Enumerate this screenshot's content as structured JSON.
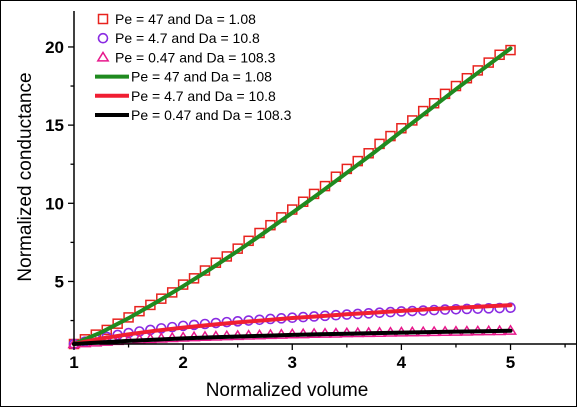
{
  "chart_data": {
    "type": "scatter",
    "xlabel": "Normalized volume",
    "ylabel": "Normalized conductance",
    "xlim": [
      1,
      5.6
    ],
    "ylim": [
      1,
      22.3
    ],
    "xticks": [
      1,
      2,
      3,
      4,
      5
    ],
    "yticks": [
      5,
      10,
      15,
      20
    ],
    "grid": false,
    "legend_position": "top-left",
    "series": [
      {
        "name": "Pe = 47 and Da = 1.08",
        "kind": "markers",
        "marker": "square",
        "color": "#e8231e",
        "x": [
          1.0,
          1.1,
          1.2,
          1.3,
          1.4,
          1.5,
          1.6,
          1.7,
          1.8,
          1.9,
          2.0,
          2.1,
          2.2,
          2.3,
          2.4,
          2.5,
          2.6,
          2.7,
          2.8,
          2.9,
          3.0,
          3.1,
          3.2,
          3.3,
          3.4,
          3.5,
          3.6,
          3.7,
          3.8,
          3.9,
          4.0,
          4.1,
          4.2,
          4.3,
          4.4,
          4.5,
          4.6,
          4.7,
          4.8,
          4.9,
          5.0
        ],
        "y": [
          1.0,
          1.3,
          1.6,
          1.9,
          2.3,
          2.7,
          3.1,
          3.5,
          3.9,
          4.3,
          4.8,
          5.2,
          5.7,
          6.2,
          6.6,
          7.1,
          7.6,
          8.1,
          8.6,
          9.1,
          9.6,
          10.1,
          10.6,
          11.1,
          11.7,
          12.2,
          12.7,
          13.2,
          13.8,
          14.3,
          14.8,
          15.3,
          15.9,
          16.4,
          17.0,
          17.5,
          18.0,
          18.5,
          19.0,
          19.5,
          19.8
        ]
      },
      {
        "name": "Pe = 4.7 and Da = 10.8",
        "kind": "markers",
        "marker": "circle",
        "color": "#8a2be2",
        "x": [
          1.0,
          1.1,
          1.2,
          1.3,
          1.4,
          1.5,
          1.6,
          1.7,
          1.8,
          1.9,
          2.0,
          2.1,
          2.2,
          2.3,
          2.4,
          2.5,
          2.6,
          2.7,
          2.8,
          2.9,
          3.0,
          3.1,
          3.2,
          3.3,
          3.4,
          3.5,
          3.6,
          3.7,
          3.8,
          3.9,
          4.0,
          4.1,
          4.2,
          4.3,
          4.4,
          4.5,
          4.6,
          4.7,
          4.8,
          4.9,
          5.0
        ],
        "y": [
          1.0,
          1.15,
          1.3,
          1.45,
          1.58,
          1.7,
          1.8,
          1.9,
          2.0,
          2.08,
          2.16,
          2.22,
          2.28,
          2.34,
          2.4,
          2.45,
          2.5,
          2.55,
          2.6,
          2.64,
          2.68,
          2.72,
          2.76,
          2.8,
          2.84,
          2.88,
          2.92,
          2.96,
          3.0,
          3.04,
          3.08,
          3.11,
          3.14,
          3.17,
          3.2,
          3.22,
          3.24,
          3.26,
          3.28,
          3.3,
          3.32
        ]
      },
      {
        "name": "Pe = 0.47 and Da = 108.3",
        "kind": "markers",
        "marker": "triangle",
        "color": "#e8188c",
        "x": [
          1.0,
          1.1,
          1.2,
          1.3,
          1.4,
          1.5,
          1.6,
          1.7,
          1.8,
          1.9,
          2.0,
          2.1,
          2.2,
          2.3,
          2.4,
          2.5,
          2.6,
          2.7,
          2.8,
          2.9,
          3.0,
          3.1,
          3.2,
          3.3,
          3.4,
          3.5,
          3.6,
          3.7,
          3.8,
          3.9,
          4.0,
          4.1,
          4.2,
          4.3,
          4.4,
          4.5,
          4.6,
          4.7,
          4.8,
          4.9,
          5.0
        ],
        "y": [
          1.0,
          1.05,
          1.1,
          1.15,
          1.2,
          1.24,
          1.28,
          1.32,
          1.35,
          1.38,
          1.41,
          1.44,
          1.46,
          1.48,
          1.5,
          1.52,
          1.54,
          1.56,
          1.58,
          1.6,
          1.62,
          1.63,
          1.65,
          1.66,
          1.67,
          1.69,
          1.7,
          1.71,
          1.72,
          1.73,
          1.74,
          1.75,
          1.76,
          1.77,
          1.78,
          1.79,
          1.8,
          1.81,
          1.82,
          1.83,
          1.85
        ]
      },
      {
        "name": "Pe = 47 and Da = 1.08",
        "kind": "line",
        "color": "#1f8a1f",
        "x": [
          1.0,
          1.25,
          1.5,
          1.75,
          2.0,
          2.25,
          2.5,
          2.75,
          3.0,
          3.25,
          3.5,
          3.75,
          4.0,
          4.25,
          4.5,
          4.75,
          5.0
        ],
        "y": [
          1.0,
          1.75,
          2.65,
          3.65,
          4.7,
          5.8,
          6.95,
          8.15,
          9.4,
          10.65,
          11.95,
          13.25,
          14.6,
          15.95,
          17.3,
          18.6,
          19.9
        ]
      },
      {
        "name": "Pe = 4.7 and Da = 10.8",
        "kind": "line",
        "color": "#f01e32",
        "x": [
          1.0,
          1.25,
          1.5,
          1.75,
          2.0,
          2.25,
          2.5,
          2.75,
          3.0,
          3.25,
          3.5,
          3.75,
          4.0,
          4.25,
          4.5,
          4.75,
          5.0
        ],
        "y": [
          1.0,
          1.35,
          1.62,
          1.85,
          2.05,
          2.22,
          2.38,
          2.52,
          2.66,
          2.78,
          2.9,
          3.01,
          3.12,
          3.22,
          3.31,
          3.4,
          3.48
        ]
      },
      {
        "name": "Pe = 0.47 and Da = 108.3",
        "kind": "line",
        "color": "#000000",
        "x": [
          1.0,
          1.25,
          1.5,
          1.75,
          2.0,
          2.25,
          2.5,
          2.75,
          3.0,
          3.25,
          3.5,
          3.75,
          4.0,
          4.25,
          4.5,
          4.75,
          5.0
        ],
        "y": [
          1.0,
          1.1,
          1.2,
          1.28,
          1.36,
          1.42,
          1.48,
          1.53,
          1.58,
          1.62,
          1.66,
          1.7,
          1.73,
          1.76,
          1.79,
          1.82,
          1.85
        ]
      }
    ]
  }
}
